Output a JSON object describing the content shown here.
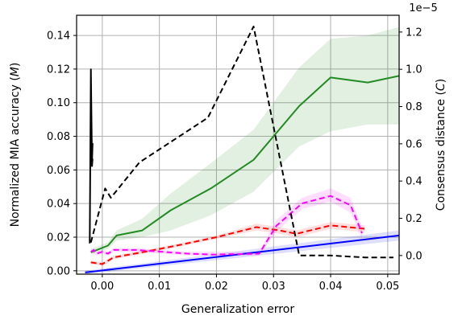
{
  "chart_data": {
    "type": "line",
    "xlabel": "Generalization error",
    "ylabel_left_parts": [
      "Normalized MIA accuracy (",
      "M",
      ")"
    ],
    "ylabel_right_parts": [
      "Consensus distance (",
      "C",
      ")"
    ],
    "right_axis_multiplier": "1e−5",
    "xlim": [
      -0.0045,
      0.052
    ],
    "ylim_left": [
      -0.002,
      0.152
    ],
    "ylim_right": [
      -1e-06,
      1.29e-05
    ],
    "x_ticks": [
      0.0,
      0.01,
      0.02,
      0.03,
      0.04,
      0.05
    ],
    "x_tick_labels": [
      "0.00",
      "0.01",
      "0.02",
      "0.03",
      "0.04",
      "0.05"
    ],
    "y_left_ticks": [
      0.0,
      0.02,
      0.04,
      0.06,
      0.08,
      0.1,
      0.12,
      0.14
    ],
    "y_left_tick_labels": [
      "0.00",
      "0.02",
      "0.04",
      "0.06",
      "0.08",
      "0.10",
      "0.12",
      "0.14"
    ],
    "y_right_ticks": [
      0.0,
      2e-06,
      4e-06,
      6e-06,
      8e-06,
      1e-05,
      1.2e-05
    ],
    "y_right_tick_labels": [
      "0.0",
      "0.2",
      "0.4",
      "0.6",
      "0.8",
      "1.0",
      "1.2"
    ],
    "grid": true,
    "series": [
      {
        "axis": "left",
        "color": "#228b22",
        "style": "solid",
        "band_color": "#228b22",
        "x": [
          -0.002,
          0.001,
          0.0025,
          0.007,
          0.012,
          0.019,
          0.0265,
          0.0345,
          0.04,
          0.0465,
          0.052
        ],
        "y": [
          0.011,
          0.015,
          0.021,
          0.024,
          0.036,
          0.049,
          0.066,
          0.098,
          0.115,
          0.112,
          0.116
        ],
        "lower": [
          0.01,
          0.013,
          0.018,
          0.02,
          0.024,
          0.033,
          0.047,
          0.074,
          0.083,
          0.087,
          0.087
        ],
        "upper": [
          0.013,
          0.017,
          0.024,
          0.031,
          0.046,
          0.064,
          0.084,
          0.121,
          0.138,
          0.14,
          0.145
        ]
      },
      {
        "axis": "left",
        "color": "#ff0000",
        "style": "dashed",
        "band_color": "#ff0000",
        "x": [
          -0.002,
          0.0,
          0.002,
          0.007,
          0.013,
          0.02,
          0.027,
          0.031,
          0.034,
          0.04,
          0.046
        ],
        "y": [
          0.005,
          0.004,
          0.008,
          0.011,
          0.015,
          0.02,
          0.026,
          0.024,
          0.022,
          0.027,
          0.025
        ],
        "lower": [
          0.004,
          0.003,
          0.007,
          0.01,
          0.014,
          0.019,
          0.024,
          0.022,
          0.02,
          0.025,
          0.023
        ],
        "upper": [
          0.006,
          0.005,
          0.009,
          0.012,
          0.016,
          0.021,
          0.028,
          0.026,
          0.024,
          0.029,
          0.027
        ]
      },
      {
        "axis": "left",
        "color": "#0000ff",
        "style": "solid",
        "band_color": "#0000ff",
        "x": [
          -0.003,
          0.052
        ],
        "y": [
          -0.001,
          0.021
        ],
        "lower": [
          -0.002,
          0.018
        ],
        "upper": [
          0.0,
          0.024
        ]
      },
      {
        "axis": "right",
        "color": "#ff00ff",
        "style": "dashed",
        "band_color": "#ff00ff",
        "x": [
          -0.002,
          -0.0015,
          -0.001,
          0.0,
          0.001,
          0.002,
          0.006,
          0.015,
          0.0195,
          0.0275,
          0.0305,
          0.035,
          0.04,
          0.0435,
          0.0455
        ],
        "y": [
          2e-07,
          3e-07,
          1e-07,
          2e-07,
          1e-07,
          3e-07,
          3e-07,
          1e-07,
          5e-08,
          1e-07,
          1.6e-06,
          2.8e-06,
          3.2e-06,
          2.7e-06,
          1.2e-06
        ],
        "lower": [
          1e-07,
          1e-07,
          0.0,
          1e-07,
          0.0,
          2e-07,
          2e-07,
          0.0,
          0.0,
          0.0,
          1.3e-06,
          2.5e-06,
          2.9e-06,
          2.3e-06,
          9e-07
        ],
        "upper": [
          3e-07,
          4e-07,
          2e-07,
          3e-07,
          2e-07,
          4e-07,
          4e-07,
          2e-07,
          2e-07,
          2e-07,
          1.9e-06,
          3.1e-06,
          3.6e-06,
          3.1e-06,
          1.5e-06
        ]
      },
      {
        "axis": "right",
        "color": "#000000",
        "style": "solid",
        "x": [
          -0.0022,
          -0.002,
          -0.0018,
          -0.0017,
          -0.002,
          -0.0019,
          -0.0018,
          -0.0017
        ],
        "y": [
          6.5e-07,
          1e-05,
          5e-06,
          6e-06,
          5.5e-06,
          7e-06,
          4.8e-06,
          5.2e-06
        ]
      },
      {
        "axis": "right",
        "color": "#000000",
        "style": "dashed",
        "x": [
          -0.002,
          0.0005,
          0.0015,
          0.0065,
          0.0185,
          0.0265,
          0.0345,
          0.04,
          0.046,
          0.051
        ],
        "y": [
          7e-07,
          3.6e-06,
          3.1e-06,
          5e-06,
          7.4e-06,
          1.23e-05,
          0.0,
          0.0,
          -1e-07,
          -1e-07
        ]
      }
    ]
  }
}
